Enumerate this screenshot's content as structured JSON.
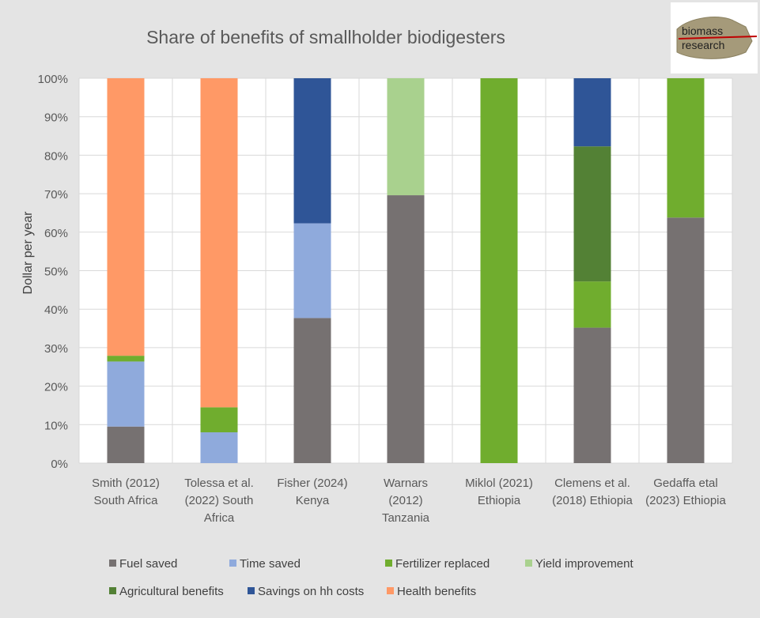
{
  "logo": {
    "line1": "biomass",
    "line2": "research"
  },
  "chart_data": {
    "type": "bar",
    "stacked": true,
    "title": "Share of benefits of smallholder biodigesters",
    "xlabel": "",
    "ylabel": "Dollar per year",
    "ylim": [
      0,
      100
    ],
    "yticks": [
      "0%",
      "10%",
      "20%",
      "30%",
      "40%",
      "50%",
      "60%",
      "70%",
      "80%",
      "90%",
      "100%"
    ],
    "categories": [
      [
        "Smith (2012)",
        "South Africa"
      ],
      [
        "Tolessa et al.",
        "(2022) South",
        "Africa"
      ],
      [
        "Fisher (2024)",
        "Kenya"
      ],
      [
        "Warnars",
        "(2012)",
        "Tanzania"
      ],
      [
        "Miklol (2021)",
        "Ethiopia"
      ],
      [
        "Clemens et al.",
        "(2018) Ethiopia"
      ],
      [
        "Gedaffa etal",
        "(2023) Ethiopia"
      ]
    ],
    "grid": true,
    "legend_position": "bottom",
    "series": [
      {
        "name": "Fuel saved",
        "color": "#767171",
        "values": [
          9.5,
          0,
          37.7,
          69.6,
          0,
          35.2,
          63.8
        ]
      },
      {
        "name": "Time saved",
        "color": "#8faadc",
        "values": [
          16.9,
          8,
          24.6,
          0,
          0,
          0,
          0
        ]
      },
      {
        "name": "Fertilizer replaced",
        "color": "#70ad2e",
        "values": [
          1.5,
          6.5,
          0,
          0,
          100,
          12,
          36.2
        ]
      },
      {
        "name": "Yield improvement",
        "color": "#a9d18e",
        "values": [
          0,
          0,
          0,
          30.4,
          0,
          0,
          0
        ]
      },
      {
        "name": "Agricultural benefits",
        "color": "#538135",
        "values": [
          0,
          0,
          0,
          0,
          0,
          35.1,
          0
        ]
      },
      {
        "name": "Savings on hh costs",
        "color": "#2f5597",
        "values": [
          0,
          0,
          37.7,
          0,
          0,
          17.7,
          0
        ]
      },
      {
        "name": "Health benefits",
        "color": "#ff9966",
        "values": [
          72.1,
          85.5,
          0,
          0,
          0,
          0,
          0
        ]
      }
    ]
  }
}
